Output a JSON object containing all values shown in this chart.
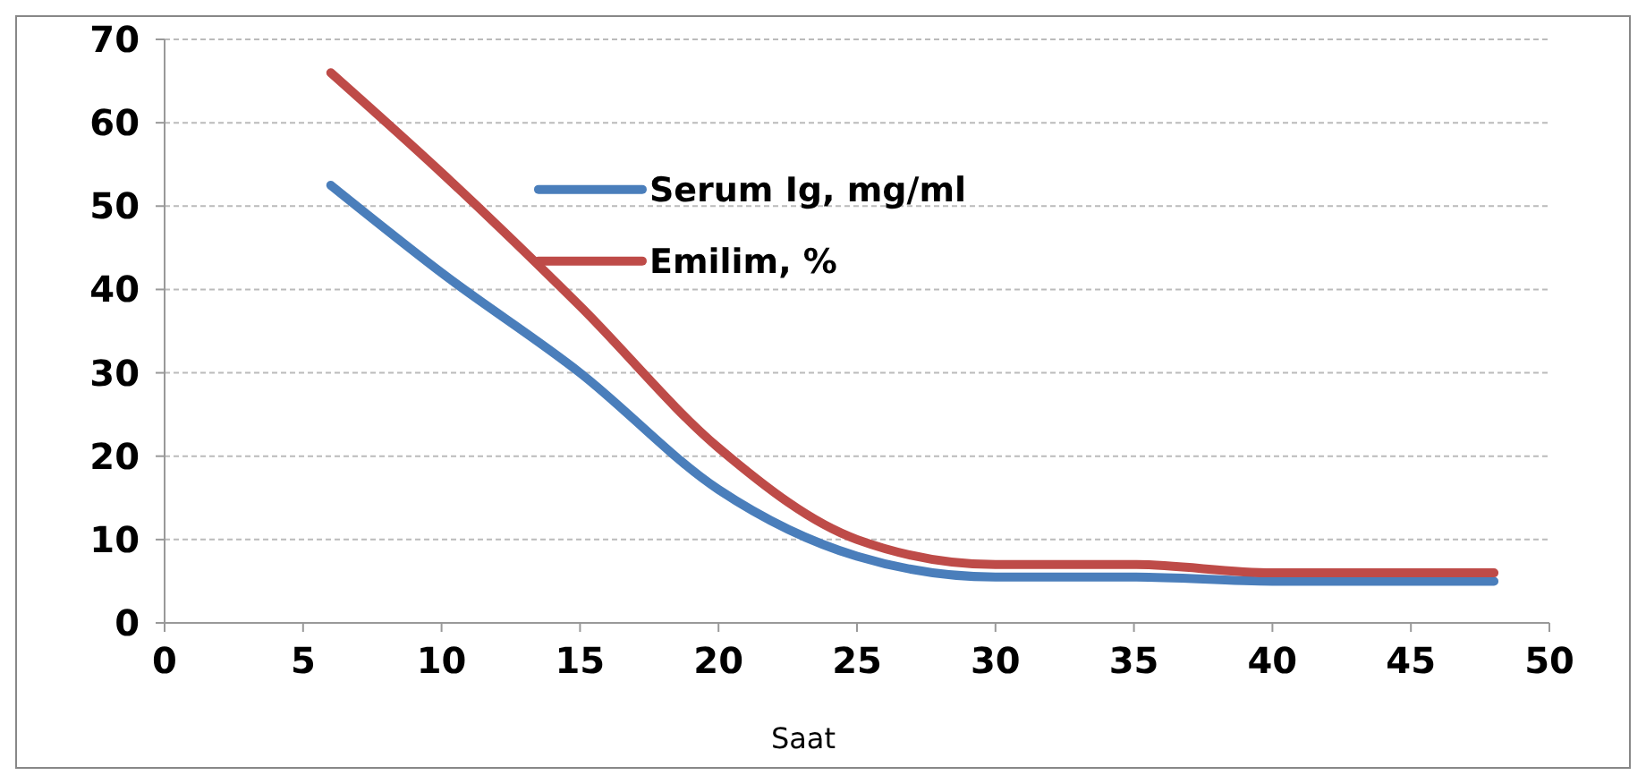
{
  "chart_data": {
    "type": "line",
    "xlabel": "Saat",
    "x": [
      6,
      10,
      15,
      20,
      25,
      30,
      35,
      40,
      48
    ],
    "series": [
      {
        "name": "Serum Ig, mg/ml",
        "color": "#4a7ebb",
        "values": [
          52.5,
          42,
          30,
          16,
          8,
          5.5,
          5.5,
          5,
          5
        ]
      },
      {
        "name": "Emilim, %",
        "color": "#be4b48",
        "values": [
          66,
          54,
          38,
          21,
          10,
          7,
          7,
          6,
          6
        ]
      }
    ],
    "xlim": [
      0,
      50
    ],
    "xticks": [
      0,
      5,
      10,
      15,
      20,
      25,
      30,
      35,
      40,
      45,
      50
    ],
    "ylim": [
      0,
      70
    ],
    "yticks": [
      0,
      10,
      20,
      30,
      40,
      50,
      60,
      70
    ],
    "grid": "y",
    "legend": "top",
    "marker": "none",
    "line_style": "solid"
  }
}
